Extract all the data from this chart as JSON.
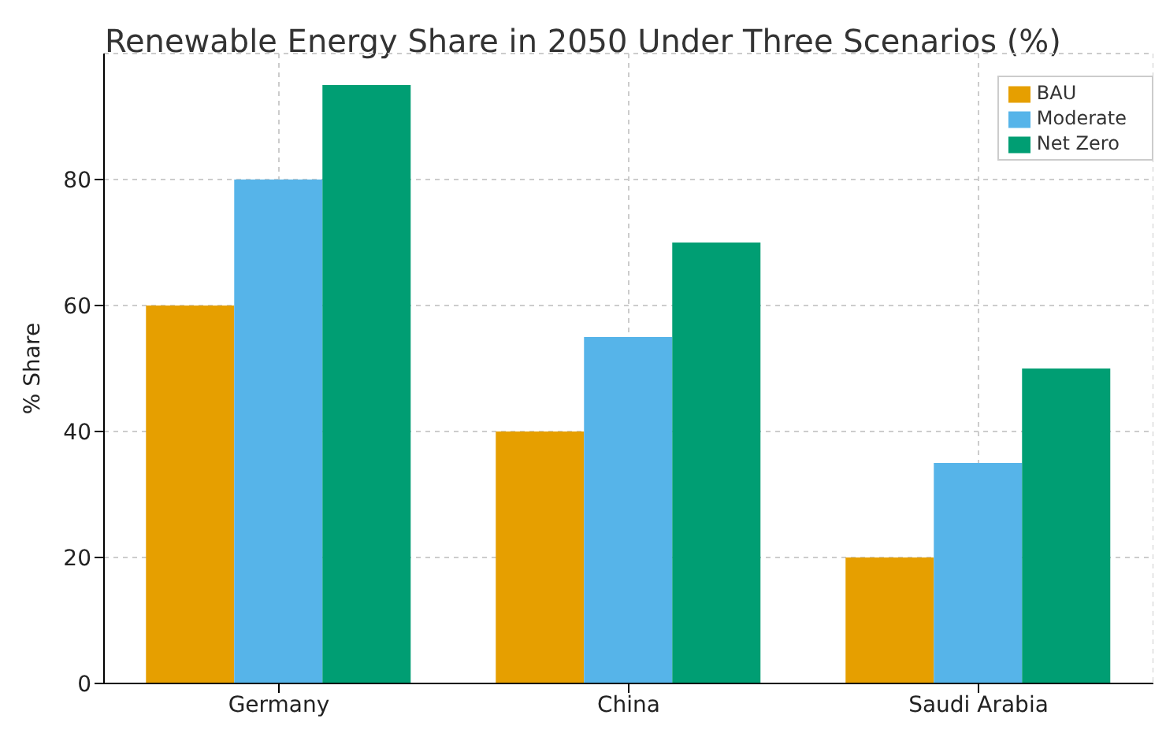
{
  "chart_data": {
    "type": "bar",
    "title": "Renewable Energy Share in 2050 Under Three Scenarios (%)",
    "ylabel": "% Share",
    "categories": [
      "Germany",
      "China",
      "Saudi Arabia"
    ],
    "series": [
      {
        "name": "BAU",
        "color": "#e69f00",
        "values": [
          60,
          40,
          20
        ]
      },
      {
        "name": "Moderate",
        "color": "#56b4e9",
        "values": [
          80,
          55,
          35
        ]
      },
      {
        "name": "Net Zero",
        "color": "#009e73",
        "values": [
          95,
          70,
          50
        ]
      }
    ],
    "ylim": [
      0,
      100
    ],
    "yticks": [
      0,
      20,
      40,
      60,
      80
    ],
    "grid": true,
    "legend": "top right"
  }
}
